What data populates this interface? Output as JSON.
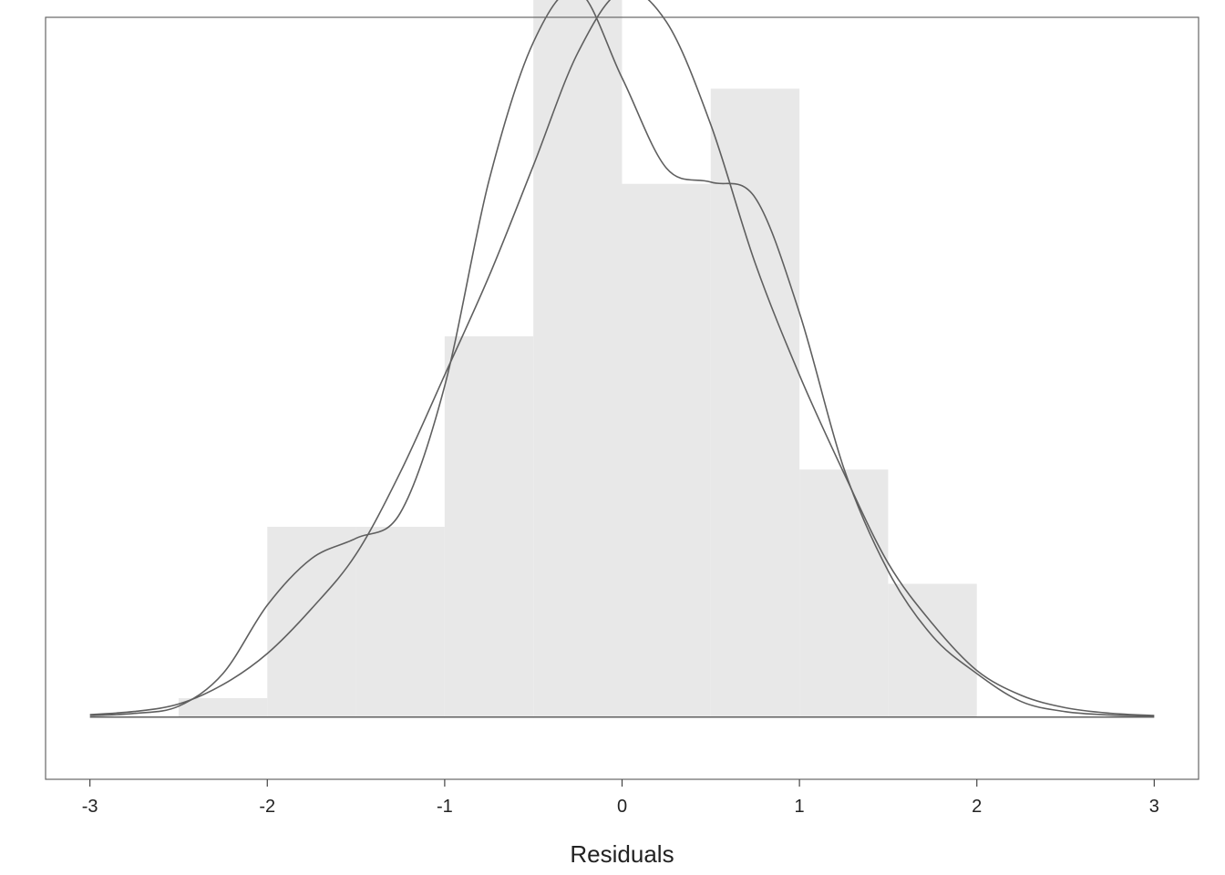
{
  "chart_data": {
    "type": "bar",
    "title": "",
    "xlabel": "Residuals",
    "ylabel": "",
    "xlim": [
      -3.25,
      3.25
    ],
    "ylim": [
      -0.04,
      0.45
    ],
    "grid": false,
    "histogram": {
      "bin_edges": [
        -2.5,
        -2.0,
        -1.5,
        -1.0,
        -0.5,
        0.0,
        0.5,
        1.0,
        1.5,
        2.0
      ],
      "density": [
        0.0122,
        0.1224,
        0.1224,
        0.2449,
        0.502,
        0.3429,
        0.4041,
        0.1592,
        0.0857
      ]
    },
    "x_ticks": [
      -3,
      -2,
      -1,
      0,
      1,
      2,
      3
    ],
    "x_tick_labels": [
      "-3",
      "-2",
      "-1",
      "0",
      "1",
      "2",
      "3"
    ],
    "series": [
      {
        "type": "line",
        "x": [
          -3.0,
          -2.75,
          -2.5,
          -2.25,
          -2.0,
          -1.75,
          -1.5,
          -1.25,
          -1.0,
          -0.75,
          -0.5,
          -0.25,
          0.0,
          0.25,
          0.5,
          0.75,
          1.0,
          1.25,
          1.5,
          1.75,
          2.0,
          2.25,
          2.5,
          2.75,
          3.0
        ],
        "y": [
          0.0016,
          0.0036,
          0.0084,
          0.0209,
          0.0409,
          0.0698,
          0.1047,
          0.1574,
          0.22,
          0.2835,
          0.3547,
          0.427,
          0.467,
          0.447,
          0.381,
          0.292,
          0.22,
          0.157,
          0.099,
          0.06,
          0.03,
          0.014,
          0.006,
          0.0025,
          0.001
        ]
      },
      {
        "type": "line",
        "x": [
          -3.0,
          -2.75,
          -2.5,
          -2.25,
          -2.0,
          -1.75,
          -1.5,
          -1.25,
          -1.0,
          -0.75,
          -0.5,
          -0.25,
          0.0,
          0.25,
          0.5,
          0.75,
          1.0,
          1.25,
          1.5,
          1.75,
          2.0,
          2.25,
          2.5,
          2.75,
          3.0
        ],
        "y": [
          0.001,
          0.0024,
          0.007,
          0.028,
          0.072,
          0.102,
          0.115,
          0.1313,
          0.213,
          0.345,
          0.434,
          0.467,
          0.411,
          0.353,
          0.344,
          0.334,
          0.26,
          0.16,
          0.094,
          0.052,
          0.028,
          0.01,
          0.0035,
          0.0014,
          0.0008
        ]
      }
    ]
  }
}
